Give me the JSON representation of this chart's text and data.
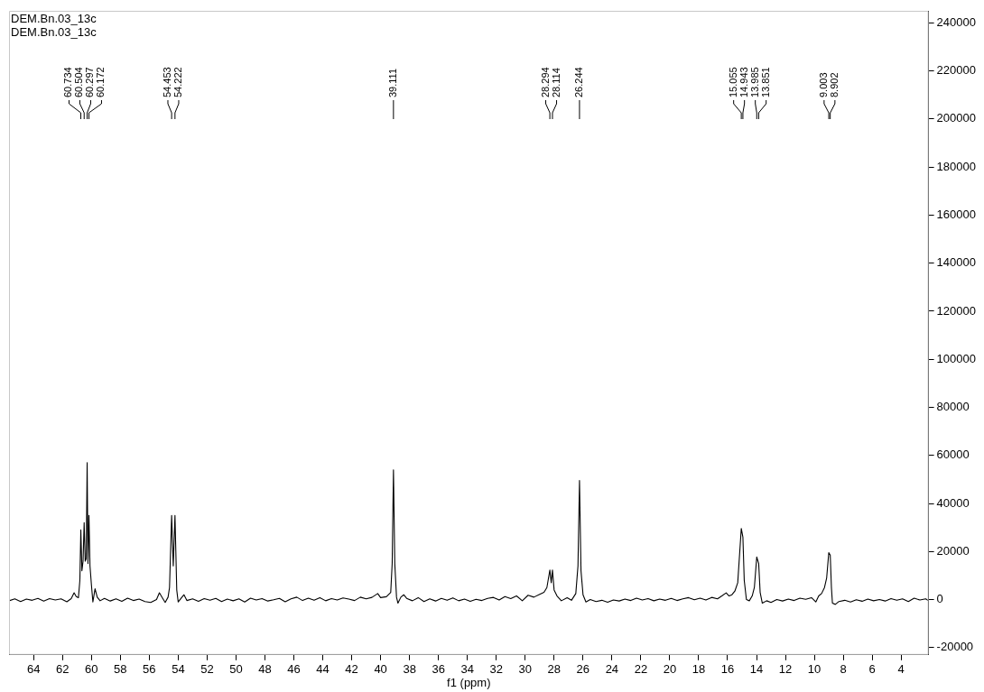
{
  "chart_data": {
    "type": "line",
    "title": "DEM.Bn.03_13c",
    "subtitle": "DEM.Bn.03_13c",
    "xlabel": "f1 (ppm)",
    "xlim": [
      65.7,
      2.1
    ],
    "xticks": [
      64,
      62,
      60,
      58,
      56,
      54,
      52,
      50,
      48,
      46,
      44,
      42,
      40,
      38,
      36,
      34,
      32,
      30,
      28,
      26,
      24,
      22,
      20,
      18,
      16,
      14,
      12,
      10,
      8,
      6,
      4
    ],
    "ylim": [
      -23000,
      245000
    ],
    "yticks": [
      -20000,
      0,
      20000,
      40000,
      60000,
      80000,
      100000,
      120000,
      140000,
      160000,
      180000,
      200000,
      220000,
      240000
    ],
    "grid": false,
    "marker": "none",
    "line_style": "solid",
    "annotations": [
      {
        "text": "60.734",
        "x": 60.734
      },
      {
        "text": "60.504",
        "x": 60.504
      },
      {
        "text": "60.297",
        "x": 60.297
      },
      {
        "text": "60.172",
        "x": 60.172
      },
      {
        "text": "54.453",
        "x": 54.453
      },
      {
        "text": "54.222",
        "x": 54.222
      },
      {
        "text": "39.111",
        "x": 39.111
      },
      {
        "text": "28.294",
        "x": 28.294
      },
      {
        "text": "28.114",
        "x": 28.114
      },
      {
        "text": "26.244",
        "x": 26.244
      },
      {
        "text": "15.055",
        "x": 15.055
      },
      {
        "text": "14.943",
        "x": 14.943
      },
      {
        "text": "13.985",
        "x": 13.985
      },
      {
        "text": "13.851",
        "x": 13.851
      },
      {
        "text": "9.003",
        "x": 9.003
      },
      {
        "text": "8.902",
        "x": 8.902
      }
    ],
    "series": [
      {
        "color": "#000000",
        "x": [
          65.7,
          65.3,
          64.9,
          64.5,
          64.1,
          63.7,
          63.3,
          62.9,
          62.5,
          62.1,
          61.7,
          61.4,
          61.2,
          61.05,
          60.9,
          60.8,
          60.734,
          60.66,
          60.58,
          60.504,
          60.43,
          60.36,
          60.297,
          60.24,
          60.172,
          60.1,
          60.0,
          59.9,
          59.75,
          59.6,
          59.4,
          59.1,
          58.7,
          58.3,
          57.9,
          57.5,
          57.1,
          56.7,
          56.3,
          55.9,
          55.5,
          55.3,
          55.1,
          54.9,
          54.7,
          54.6,
          54.453,
          54.34,
          54.222,
          54.1,
          54.0,
          53.8,
          53.6,
          53.4,
          53.0,
          52.6,
          52.2,
          51.8,
          51.4,
          51.0,
          50.6,
          50.2,
          49.8,
          49.4,
          49.0,
          48.6,
          48.2,
          47.8,
          47.4,
          47.0,
          46.6,
          46.2,
          45.8,
          45.4,
          45.0,
          44.6,
          44.2,
          43.8,
          43.4,
          43.0,
          42.6,
          42.2,
          41.8,
          41.4,
          41.0,
          40.6,
          40.2,
          40.0,
          39.6,
          39.3,
          39.2,
          39.111,
          39.02,
          38.9,
          38.8,
          38.6,
          38.4,
          38.2,
          37.8,
          37.4,
          37.0,
          36.6,
          36.2,
          35.8,
          35.4,
          35.0,
          34.6,
          34.2,
          33.8,
          33.4,
          33.0,
          32.6,
          32.2,
          31.8,
          31.4,
          31.0,
          30.6,
          30.2,
          29.8,
          29.4,
          29.0,
          28.7,
          28.5,
          28.294,
          28.2,
          28.114,
          28.0,
          27.8,
          27.5,
          27.1,
          26.8,
          26.5,
          26.35,
          26.244,
          26.14,
          26.0,
          25.8,
          25.5,
          25.1,
          24.7,
          24.3,
          23.9,
          23.5,
          23.1,
          22.7,
          22.3,
          21.9,
          21.5,
          21.1,
          20.7,
          20.3,
          19.9,
          19.5,
          19.1,
          18.7,
          18.3,
          17.9,
          17.5,
          17.1,
          16.7,
          16.4,
          16.1,
          15.9,
          15.7,
          15.5,
          15.3,
          15.055,
          14.943,
          14.85,
          14.7,
          14.5,
          14.3,
          14.15,
          13.985,
          13.851,
          13.75,
          13.6,
          13.3,
          13.0,
          12.6,
          12.2,
          11.8,
          11.4,
          11.0,
          10.6,
          10.2,
          9.9,
          9.7,
          9.5,
          9.3,
          9.15,
          9.003,
          8.902,
          8.82,
          8.75,
          8.55,
          8.3,
          7.9,
          7.5,
          7.1,
          6.7,
          6.3,
          5.9,
          5.5,
          5.1,
          4.7,
          4.3,
          3.9,
          3.5,
          3.1,
          2.7,
          2.3,
          2.1
        ],
        "values": [
          -500,
          300,
          -800,
          200,
          -300,
          500,
          -600,
          400,
          -200,
          300,
          -900,
          400,
          2800,
          1200,
          800,
          8000,
          29000,
          12000,
          16000,
          32000,
          16000,
          17000,
          57000,
          15000,
          35000,
          14000,
          6000,
          -1000,
          4500,
          1000,
          -500,
          500,
          -600,
          300,
          -700,
          600,
          -400,
          200,
          -800,
          -1200,
          0,
          2800,
          800,
          -1200,
          1000,
          5000,
          35000,
          14000,
          35000,
          4000,
          -1000,
          500,
          2000,
          -400,
          300,
          -700,
          400,
          -300,
          500,
          -800,
          200,
          -500,
          300,
          -1000,
          600,
          -200,
          400,
          -600,
          -100,
          500,
          -900,
          300,
          1000,
          -400,
          600,
          -300,
          800,
          -500,
          400,
          -200,
          700,
          200,
          -400,
          1000,
          300,
          900,
          2500,
          800,
          1200,
          3000,
          15000,
          54000,
          15000,
          1000,
          -1500,
          1000,
          2000,
          500,
          -500,
          800,
          -800,
          300,
          -600,
          500,
          -300,
          700,
          -500,
          200,
          -700,
          100,
          -400,
          500,
          900,
          -200,
          1200,
          400,
          1500,
          -500,
          1800,
          1000,
          2200,
          3000,
          5000,
          12300,
          7000,
          12300,
          4000,
          1500,
          -500,
          800,
          -300,
          2500,
          14000,
          49600,
          12000,
          2000,
          -1000,
          0,
          -800,
          -300,
          -1100,
          -200,
          -600,
          200,
          -400,
          600,
          -200,
          400,
          -500,
          200,
          -300,
          500,
          -400,
          300,
          800,
          -100,
          600,
          -200,
          900,
          300,
          1500,
          2800,
          1500,
          2000,
          3500,
          7000,
          29600,
          26000,
          8000,
          0,
          -500,
          1500,
          5000,
          17700,
          15000,
          3000,
          -1500,
          -500,
          -1200,
          0,
          -600,
          200,
          -400,
          600,
          100,
          800,
          -1000,
          1500,
          2500,
          5000,
          9000,
          19500,
          18500,
          5000,
          -1500,
          -2000,
          -800,
          -300,
          -1000,
          -100,
          -700,
          200,
          -500,
          0,
          -600,
          400,
          -300,
          300,
          -800,
          600,
          -200,
          300,
          -500
        ]
      }
    ]
  }
}
